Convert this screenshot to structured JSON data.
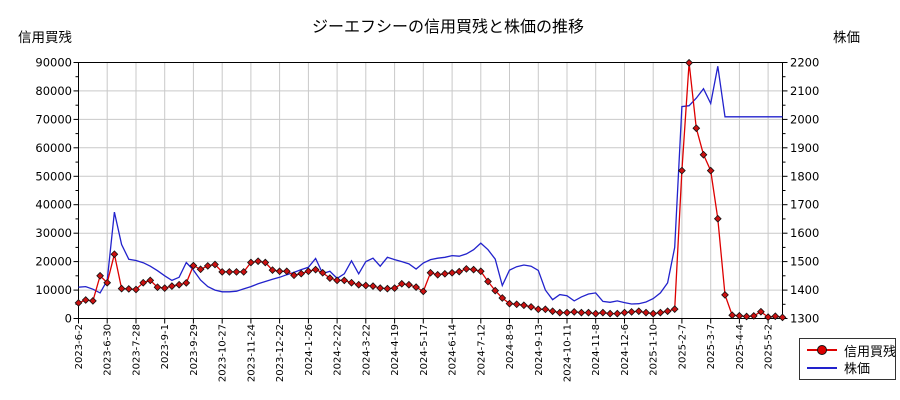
{
  "title": "ジーエフシーの信用買残と株価の推移",
  "left_axis": {
    "label": "信用買残",
    "min": 0,
    "max": 90000,
    "ticks": [
      0,
      10000,
      20000,
      30000,
      40000,
      50000,
      60000,
      70000,
      80000,
      90000
    ],
    "minor_step": 5000
  },
  "right_axis": {
    "label": "株価",
    "min": 1300,
    "max": 2200,
    "ticks": [
      1300,
      1400,
      1500,
      1600,
      1700,
      1800,
      1900,
      2000,
      2100,
      2200
    ],
    "minor_step": 50
  },
  "legend": {
    "items": [
      {
        "label": "信用買残",
        "color": "#dd0000",
        "marker": "circle-line"
      },
      {
        "label": "株価",
        "color": "#2222cc",
        "marker": "line"
      }
    ]
  },
  "colors": {
    "margin_series": "#dd0000",
    "marker_fill": "#cc1111",
    "marker_edge": "#111111",
    "price_series": "#2222cc",
    "grid": "#c9c9c9",
    "frame": "#000000"
  },
  "chart_data": {
    "type": "line",
    "grid": true,
    "legend_position": "lower right",
    "x_tick_labels": [
      "2023-6-2",
      "2023-6-30",
      "2023-7-28",
      "2023-9-1",
      "2023-9-29",
      "2023-10-27",
      "2023-11-24",
      "2023-12-22",
      "2024-1-26",
      "2024-2-22",
      "2024-3-22",
      "2024-4-19",
      "2024-5-17",
      "2024-6-14",
      "2024-7-12",
      "2024-8-9",
      "2024-9-13",
      "2024-10-11",
      "2024-11-8",
      "2024-12-6",
      "2025-1-10",
      "2025-2-7",
      "2025-3-7",
      "2025-4-4",
      "2025-5-2"
    ],
    "x_tick_indices": [
      0,
      4,
      8,
      12,
      16,
      20,
      24,
      28,
      32,
      36,
      40,
      44,
      48,
      52,
      56,
      60,
      64,
      68,
      72,
      76,
      80,
      84,
      88,
      92,
      96
    ],
    "n_points": 99,
    "series": [
      {
        "name": "信用買残",
        "axis": "left",
        "color": "#dd0000",
        "marker": "diamond",
        "ylim": [
          0,
          90000
        ],
        "values": [
          5500,
          6500,
          6200,
          15000,
          12600,
          22600,
          10500,
          10400,
          10200,
          12600,
          13400,
          11000,
          10700,
          11400,
          11900,
          12500,
          18600,
          17300,
          18500,
          19000,
          16400,
          16400,
          16400,
          16400,
          19700,
          20150,
          19700,
          17000,
          16600,
          16600,
          15200,
          15800,
          16600,
          17200,
          16050,
          14200,
          13400,
          13400,
          12600,
          11900,
          11600,
          11400,
          10700,
          10500,
          10700,
          12200,
          11900,
          11050,
          9530,
          16050,
          15350,
          15700,
          16050,
          16500,
          17440,
          17200,
          16600,
          13000,
          9800,
          7200,
          5230,
          5000,
          4650,
          4070,
          3240,
          3240,
          2560,
          2090,
          2090,
          2330,
          2090,
          2090,
          1740,
          2090,
          1740,
          1740,
          2090,
          2330,
          2560,
          2090,
          1740,
          2090,
          2560,
          3300,
          52000,
          89900,
          66900,
          57600,
          52000,
          35100,
          8300,
          1150,
          940,
          700,
          900,
          2400,
          500,
          800,
          400
        ]
      },
      {
        "name": "株価",
        "axis": "right",
        "color": "#2222cc",
        "marker": "none",
        "ylim": [
          1300,
          2200
        ],
        "values": [
          1410,
          1412,
          1403,
          1390,
          1434,
          1674,
          1560,
          1508,
          1504,
          1496,
          1484,
          1468,
          1450,
          1434,
          1445,
          1497,
          1470,
          1435,
          1412,
          1400,
          1394,
          1394,
          1396,
          1404,
          1412,
          1422,
          1430,
          1438,
          1445,
          1454,
          1462,
          1472,
          1480,
          1511,
          1458,
          1466,
          1441,
          1457,
          1503,
          1457,
          1500,
          1512,
          1484,
          1515,
          1507,
          1500,
          1492,
          1474,
          1495,
          1507,
          1512,
          1515,
          1521,
          1519,
          1527,
          1542,
          1565,
          1542,
          1509,
          1416,
          1470,
          1482,
          1488,
          1484,
          1469,
          1400,
          1366,
          1384,
          1380,
          1362,
          1376,
          1386,
          1390,
          1360,
          1357,
          1362,
          1356,
          1351,
          1352,
          1358,
          1370,
          1390,
          1425,
          1550,
          2045,
          2048,
          2075,
          2108,
          2056,
          2187,
          2009,
          2009,
          2009,
          2009,
          2009,
          2009,
          2009,
          2009,
          2009
        ]
      }
    ]
  }
}
